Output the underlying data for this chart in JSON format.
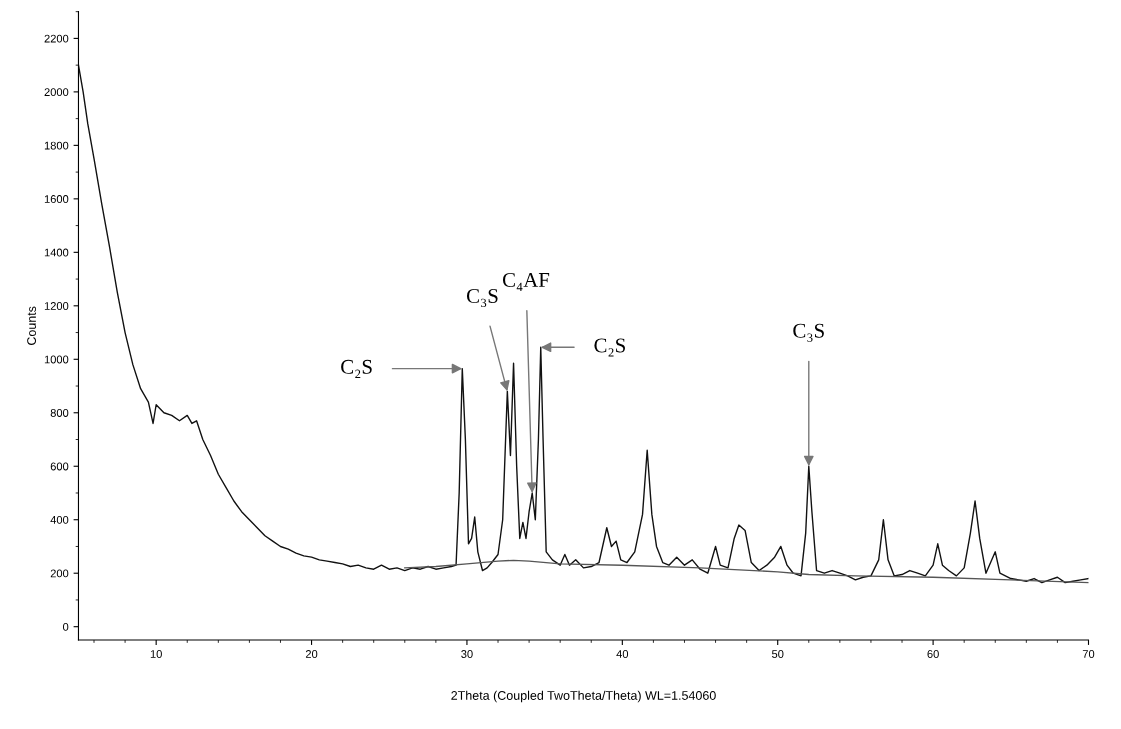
{
  "chart_data": {
    "type": "line",
    "xlabel": "2Theta (Coupled TwoTheta/Theta) WL=1.54060",
    "ylabel": "Counts",
    "xlim": [
      5,
      70
    ],
    "ylim": [
      -50,
      2300
    ],
    "xticks": [
      10,
      20,
      30,
      40,
      50,
      60,
      70
    ],
    "yticks": [
      0,
      200,
      400,
      600,
      800,
      1000,
      1200,
      1400,
      1600,
      1800,
      2000,
      2200
    ],
    "grid": false,
    "legend": false,
    "marker": "none",
    "line_style": "solid",
    "series": [
      {
        "color": "#111111",
        "x": [
          5,
          5.3,
          5.6,
          6,
          6.5,
          7,
          7.5,
          8,
          8.5,
          9,
          9.5,
          9.8,
          10,
          10.5,
          11,
          11.5,
          12,
          12.3,
          12.6,
          13,
          13.5,
          14,
          14.5,
          15,
          15.5,
          16,
          16.5,
          17,
          17.5,
          18,
          18.5,
          19,
          19.5,
          20,
          20.5,
          21,
          21.5,
          22,
          22.5,
          23,
          23.5,
          24,
          24.5,
          25,
          25.5,
          26,
          26.5,
          27,
          27.5,
          28,
          28.5,
          29,
          29.3,
          29.5,
          29.7,
          29.9,
          30.1,
          30.3,
          30.5,
          30.7,
          31,
          31.3,
          31.6,
          32,
          32.3,
          32.6,
          32.8,
          33,
          33.2,
          33.4,
          33.6,
          33.8,
          34,
          34.2,
          34.4,
          34.6,
          34.75,
          34.9,
          35.1,
          35.5,
          36,
          36.3,
          36.6,
          37,
          37.5,
          38,
          38.5,
          39,
          39.3,
          39.6,
          39.9,
          40.3,
          40.8,
          41.3,
          41.6,
          41.9,
          42.2,
          42.6,
          43,
          43.5,
          44,
          44.5,
          45,
          45.5,
          46,
          46.3,
          46.8,
          47.2,
          47.5,
          47.9,
          48.3,
          48.8,
          49.3,
          49.8,
          50.2,
          50.6,
          51,
          51.5,
          51.8,
          52,
          52.2,
          52.5,
          53,
          53.5,
          54,
          54.5,
          55,
          55.5,
          56,
          56.5,
          56.8,
          57.1,
          57.5,
          58,
          58.5,
          59,
          59.5,
          60,
          60.3,
          60.6,
          61,
          61.5,
          62,
          62.4,
          62.7,
          63,
          63.4,
          64,
          64.3,
          65,
          65.5,
          66,
          66.5,
          67,
          67.5,
          68,
          68.5,
          69,
          69.5,
          70
        ],
        "values": [
          2100,
          2000,
          1880,
          1750,
          1580,
          1420,
          1250,
          1100,
          980,
          890,
          840,
          760,
          830,
          800,
          790,
          770,
          790,
          760,
          770,
          700,
          640,
          570,
          520,
          470,
          430,
          400,
          370,
          340,
          320,
          300,
          290,
          275,
          265,
          260,
          250,
          245,
          240,
          235,
          225,
          230,
          220,
          215,
          230,
          215,
          220,
          210,
          220,
          215,
          225,
          215,
          220,
          225,
          230,
          500,
          965,
          700,
          310,
          330,
          410,
          280,
          210,
          220,
          240,
          270,
          400,
          880,
          640,
          985,
          600,
          330,
          390,
          330,
          430,
          500,
          400,
          700,
          1045,
          700,
          280,
          250,
          230,
          270,
          230,
          250,
          220,
          225,
          240,
          370,
          300,
          320,
          250,
          240,
          280,
          420,
          660,
          420,
          300,
          240,
          230,
          260,
          230,
          250,
          215,
          200,
          300,
          230,
          220,
          330,
          380,
          360,
          240,
          210,
          230,
          260,
          300,
          230,
          200,
          190,
          350,
          600,
          430,
          210,
          200,
          210,
          200,
          190,
          175,
          185,
          190,
          250,
          400,
          250,
          190,
          195,
          210,
          200,
          190,
          230,
          310,
          230,
          210,
          190,
          220,
          350,
          470,
          330,
          200,
          280,
          200,
          180,
          175,
          170,
          180,
          165,
          175,
          185,
          165,
          170,
          175,
          180
        ]
      },
      {
        "color": "#555555",
        "x": [
          26,
          28,
          30,
          32,
          33,
          34,
          36,
          40,
          45,
          50,
          52,
          55,
          60,
          65,
          70
        ],
        "values": [
          220,
          225,
          235,
          245,
          248,
          245,
          235,
          230,
          220,
          205,
          195,
          190,
          185,
          175,
          165
        ]
      }
    ],
    "annotations": [
      {
        "text": "C₂S",
        "x": 29.7,
        "y": 965
      },
      {
        "text": "C₃S",
        "x": 32.6,
        "y": 880
      },
      {
        "text": "C₄AF",
        "x": 34.2,
        "y": 500
      },
      {
        "text": "C₂S",
        "x": 34.75,
        "y": 1045
      },
      {
        "text": "C₃S",
        "x": 52,
        "y": 600
      }
    ]
  }
}
